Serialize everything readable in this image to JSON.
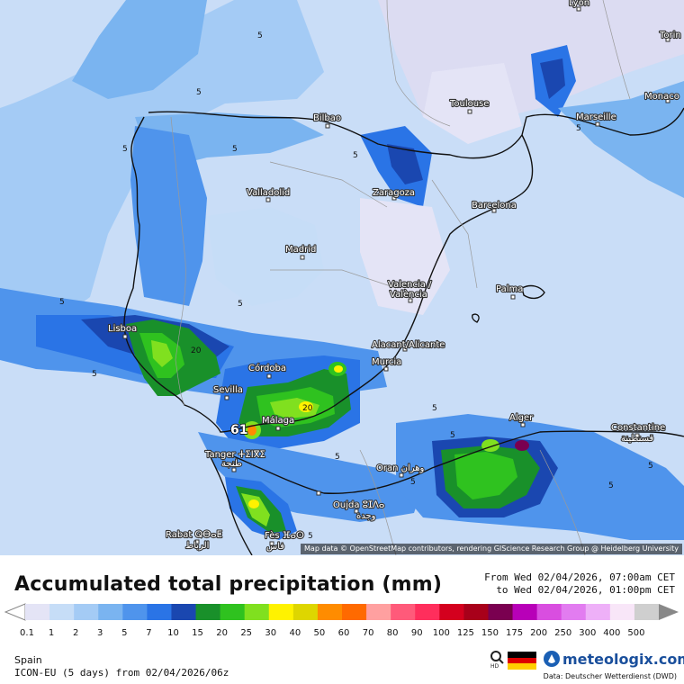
{
  "map": {
    "attribution": "Map data © OpenStreetMap contributors, rendering GIScience Research Group @ Heidelberg University",
    "cities": [
      {
        "name": "Lyon"
      },
      {
        "name": "Torin"
      },
      {
        "name": "Monaco"
      },
      {
        "name": "Toulouse"
      },
      {
        "name": "Marseille"
      },
      {
        "name": "Bilbao"
      },
      {
        "name": "Valladolid"
      },
      {
        "name": "Zaragoza"
      },
      {
        "name": "Barcelona"
      },
      {
        "name": "Madrid"
      },
      {
        "name": "Valencia /"
      },
      {
        "name": "València"
      },
      {
        "name": "Palma"
      },
      {
        "name": "Lisboa"
      },
      {
        "name": "Córdoba"
      },
      {
        "name": "Alacant/Alicante"
      },
      {
        "name": "Murcia"
      },
      {
        "name": "Sevilla"
      },
      {
        "name": "Málaga"
      },
      {
        "name": "Alger"
      },
      {
        "name": "Constantine"
      },
      {
        "name": "قسنطينة"
      },
      {
        "name": "Tanger ⵜⵉⵏⴳⵉ"
      },
      {
        "name": "طنجة"
      },
      {
        "name": "Oran وهران"
      },
      {
        "name": "Oujda ⵓⵊⴷⴰ"
      },
      {
        "name": "وجدة"
      },
      {
        "name": "Rabat ⵕⴱⴰⵟ"
      },
      {
        "name": "الرباط"
      },
      {
        "name": "Fès ⴼⴰⵙ"
      },
      {
        "name": "فاس"
      }
    ],
    "contour_labels": [
      "5",
      "5",
      "5",
      "5",
      "5",
      "5",
      "5",
      "5",
      "5",
      "5",
      "20",
      "20",
      "61",
      "5",
      "5",
      "5",
      "5",
      "5",
      "5"
    ]
  },
  "header": {
    "title": "Accumulated total precipitation (mm)",
    "period_from": "From Wed 02/04/2026, 07:00am CET",
    "period_to": "to Wed 02/04/2026, 01:00pm CET"
  },
  "legend": {
    "values": [
      "0.1",
      "1",
      "2",
      "3",
      "5",
      "7",
      "10",
      "15",
      "20",
      "25",
      "30",
      "40",
      "50",
      "60",
      "70",
      "80",
      "90",
      "100",
      "125",
      "150",
      "175",
      "200",
      "250",
      "300",
      "400",
      "500"
    ],
    "colors": [
      "#e4e4f6",
      "#c6ddf7",
      "#a4cbf5",
      "#7ab4f0",
      "#4f94ec",
      "#2a74e6",
      "#1a47b0",
      "#19902a",
      "#2fc21f",
      "#80e01f",
      "#fff200",
      "#ded600",
      "#ff8c00",
      "#ff6a00",
      "#ffa0a0",
      "#ff5a7a",
      "#ff2e5c",
      "#d4001e",
      "#a8001a",
      "#7a0050",
      "#b800b8",
      "#d94ee0",
      "#e27cf0",
      "#eeb0f8",
      "#f8e6f8",
      "#cfcfcf"
    ]
  },
  "footer": {
    "region": "Spain",
    "model": "ICON-EU (5 days) from 02/04/2026/06z",
    "brand": "meteologix.com",
    "source": "Data: Deutscher Wetterdienst (DWD)",
    "flag_colors": [
      "#000000",
      "#dd0000",
      "#ffce00"
    ]
  }
}
